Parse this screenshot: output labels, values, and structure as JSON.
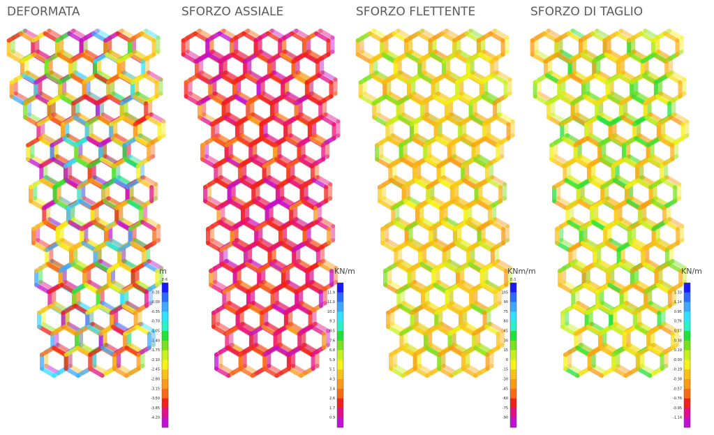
{
  "panels": [
    {
      "title": "DEFORMATA",
      "unit": "m",
      "exponent": "E-6",
      "scale": [
        "0.35",
        "0.00",
        "-0.35",
        "-0.70",
        "-1.05",
        "-1.40",
        "-1.75",
        "-2.10",
        "-2.45",
        "-2.80",
        "-3.15",
        "-3.50",
        "-3.85",
        "-4.20"
      ]
    },
    {
      "title": "SFORZO ASSIALE",
      "unit": "KN/m",
      "scale": [
        "11.9",
        "11.0",
        "10.2",
        "9.3",
        "8.5",
        "7.6",
        "6.8",
        "5.9",
        "5.1",
        "4.3",
        "3.4",
        "2.6",
        "1.7",
        "0.9"
      ]
    },
    {
      "title": "SFORZO FLETTENTE",
      "unit": "KNm/m",
      "exponent": "E-3",
      "scale": [
        "105",
        "90",
        "75",
        "60",
        "45",
        "30",
        "15",
        "0",
        "-15",
        "-30",
        "-45",
        "-60",
        "-75",
        "-90"
      ]
    },
    {
      "title": "SFORZO DI TAGLIO",
      "unit": "KN/m",
      "scale": [
        "1.33",
        "1.14",
        "0.95",
        "0.76",
        "0.57",
        "0.38",
        "0.19",
        "-0.00",
        "-0.19",
        "-0.38",
        "-0.57",
        "-0.76",
        "-0.95",
        "-1.14"
      ]
    }
  ]
}
